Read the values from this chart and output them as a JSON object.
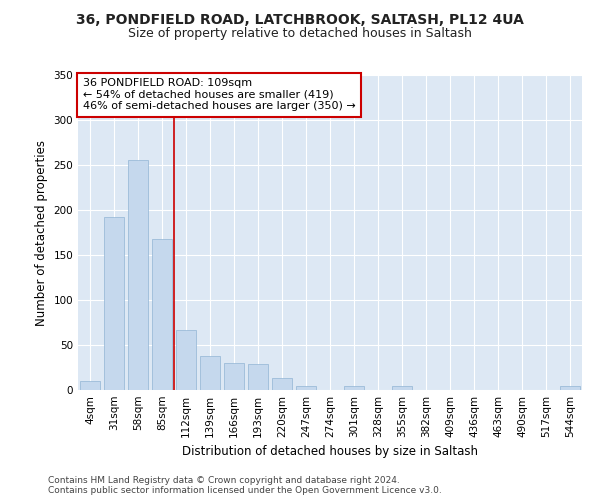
{
  "title_line1": "36, PONDFIELD ROAD, LATCHBROOK, SALTASH, PL12 4UA",
  "title_line2": "Size of property relative to detached houses in Saltash",
  "xlabel": "Distribution of detached houses by size in Saltash",
  "ylabel": "Number of detached properties",
  "footnote": "Contains HM Land Registry data © Crown copyright and database right 2024.\nContains public sector information licensed under the Open Government Licence v3.0.",
  "annotation_line1": "36 PONDFIELD ROAD: 109sqm",
  "annotation_line2": "← 54% of detached houses are smaller (419)",
  "annotation_line3": "46% of semi-detached houses are larger (350) →",
  "bar_color": "#c5d8ed",
  "bar_edge_color": "#91b4d4",
  "background_color": "#dde8f4",
  "grid_color": "#ffffff",
  "fig_background": "#ffffff",
  "vline_color": "#cc0000",
  "vline_x": 3.5,
  "categories": [
    "4sqm",
    "31sqm",
    "58sqm",
    "85sqm",
    "112sqm",
    "139sqm",
    "166sqm",
    "193sqm",
    "220sqm",
    "247sqm",
    "274sqm",
    "301sqm",
    "328sqm",
    "355sqm",
    "382sqm",
    "409sqm",
    "436sqm",
    "463sqm",
    "490sqm",
    "517sqm",
    "544sqm"
  ],
  "values": [
    10,
    192,
    256,
    168,
    67,
    38,
    30,
    29,
    13,
    5,
    0,
    4,
    0,
    4,
    0,
    0,
    0,
    0,
    0,
    0,
    4
  ],
  "ylim": [
    0,
    350
  ],
  "yticks": [
    0,
    50,
    100,
    150,
    200,
    250,
    300,
    350
  ],
  "title_fontsize": 10,
  "subtitle_fontsize": 9,
  "annotation_fontsize": 8,
  "axis_label_fontsize": 8.5,
  "tick_fontsize": 7.5,
  "footnote_fontsize": 6.5
}
